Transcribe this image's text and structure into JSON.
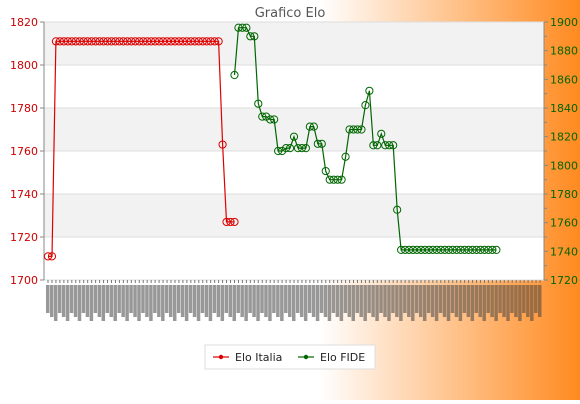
{
  "chart_data": {
    "type": "line",
    "title": "Grafico Elo",
    "legend_position": "bottom",
    "grid": true,
    "background": {
      "from": "#ffffff",
      "to": "#ff8a20"
    },
    "y_left": {
      "range": [
        1700,
        1820
      ],
      "ticks": [
        1700,
        1720,
        1740,
        1760,
        1780,
        1800,
        1820
      ],
      "color": "#cc0000"
    },
    "y_right": {
      "range": [
        1720,
        1900
      ],
      "ticks": [
        1720,
        1740,
        1760,
        1780,
        1800,
        1820,
        1840,
        1860,
        1880,
        1900
      ],
      "color": "#006600"
    },
    "x_tick_count": 125,
    "series": [
      {
        "name": "Elo Italia",
        "axis": "left",
        "color": "#dd0000",
        "points": [
          [
            0,
            1711
          ],
          [
            1,
            1711
          ],
          [
            2,
            1811
          ],
          [
            3,
            1811
          ],
          [
            4,
            1811
          ],
          [
            5,
            1811
          ],
          [
            6,
            1811
          ],
          [
            7,
            1811
          ],
          [
            8,
            1811
          ],
          [
            9,
            1811
          ],
          [
            10,
            1811
          ],
          [
            11,
            1811
          ],
          [
            12,
            1811
          ],
          [
            13,
            1811
          ],
          [
            14,
            1811
          ],
          [
            15,
            1811
          ],
          [
            16,
            1811
          ],
          [
            17,
            1811
          ],
          [
            18,
            1811
          ],
          [
            19,
            1811
          ],
          [
            20,
            1811
          ],
          [
            21,
            1811
          ],
          [
            22,
            1811
          ],
          [
            23,
            1811
          ],
          [
            24,
            1811
          ],
          [
            25,
            1811
          ],
          [
            26,
            1811
          ],
          [
            27,
            1811
          ],
          [
            28,
            1811
          ],
          [
            29,
            1811
          ],
          [
            30,
            1811
          ],
          [
            31,
            1811
          ],
          [
            32,
            1811
          ],
          [
            33,
            1811
          ],
          [
            34,
            1811
          ],
          [
            35,
            1811
          ],
          [
            36,
            1811
          ],
          [
            37,
            1811
          ],
          [
            38,
            1811
          ],
          [
            39,
            1811
          ],
          [
            40,
            1811
          ],
          [
            41,
            1811
          ],
          [
            42,
            1811
          ],
          [
            43,
            1811
          ],
          [
            44,
            1763
          ],
          [
            45,
            1727
          ],
          [
            46,
            1727
          ],
          [
            47,
            1727
          ]
        ]
      },
      {
        "name": "Elo FIDE",
        "axis": "right",
        "color": "#006600",
        "points": [
          [
            47,
            1863
          ],
          [
            48,
            1896
          ],
          [
            49,
            1896
          ],
          [
            50,
            1896
          ],
          [
            51,
            1890
          ],
          [
            52,
            1890
          ],
          [
            53,
            1843
          ],
          [
            54,
            1834
          ],
          [
            55,
            1834
          ],
          [
            56,
            1832
          ],
          [
            57,
            1832
          ],
          [
            58,
            1810
          ],
          [
            59,
            1810
          ],
          [
            60,
            1812
          ],
          [
            61,
            1812
          ],
          [
            62,
            1820
          ],
          [
            63,
            1812
          ],
          [
            64,
            1812
          ],
          [
            65,
            1812
          ],
          [
            66,
            1827
          ],
          [
            67,
            1827
          ],
          [
            68,
            1815
          ],
          [
            69,
            1815
          ],
          [
            70,
            1796
          ],
          [
            71,
            1790
          ],
          [
            72,
            1790
          ],
          [
            73,
            1790
          ],
          [
            74,
            1790
          ],
          [
            75,
            1806
          ],
          [
            76,
            1825
          ],
          [
            77,
            1825
          ],
          [
            78,
            1825
          ],
          [
            79,
            1825
          ],
          [
            80,
            1842
          ],
          [
            81,
            1852
          ],
          [
            82,
            1814
          ],
          [
            83,
            1814
          ],
          [
            84,
            1822
          ],
          [
            85,
            1814
          ],
          [
            86,
            1814
          ],
          [
            87,
            1814
          ],
          [
            88,
            1769
          ],
          [
            89,
            1741
          ],
          [
            90,
            1741
          ],
          [
            91,
            1741
          ],
          [
            92,
            1741
          ],
          [
            93,
            1741
          ],
          [
            94,
            1741
          ],
          [
            95,
            1741
          ],
          [
            96,
            1741
          ],
          [
            97,
            1741
          ],
          [
            98,
            1741
          ],
          [
            99,
            1741
          ],
          [
            100,
            1741
          ],
          [
            101,
            1741
          ],
          [
            102,
            1741
          ],
          [
            103,
            1741
          ],
          [
            104,
            1741
          ],
          [
            105,
            1741
          ],
          [
            106,
            1741
          ],
          [
            107,
            1741
          ],
          [
            108,
            1741
          ],
          [
            109,
            1741
          ],
          [
            110,
            1741
          ],
          [
            111,
            1741
          ],
          [
            112,
            1741
          ],
          [
            113,
            1741
          ]
        ]
      }
    ]
  }
}
